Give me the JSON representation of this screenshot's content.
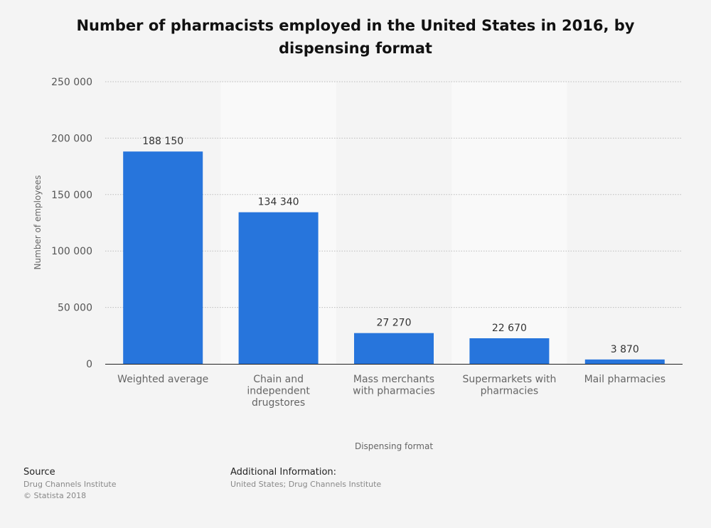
{
  "chart_data": {
    "type": "bar",
    "title": "Number of pharmacists employed in the United States in 2016, by dispensing format",
    "xlabel": "Dispensing format",
    "ylabel": "Number of employees",
    "categories": [
      [
        "Weighted average"
      ],
      [
        "Chain and",
        "independent",
        "drugstores"
      ],
      [
        "Mass merchants",
        "with pharmacies"
      ],
      [
        "Supermarkets with",
        "pharmacies"
      ],
      [
        "Mail pharmacies"
      ]
    ],
    "values": [
      188150,
      134340,
      27270,
      22670,
      3870
    ],
    "value_labels": [
      "188 150",
      "134 340",
      "27 270",
      "22 670",
      "3 870"
    ],
    "ylim": [
      0,
      250000
    ],
    "yticks": [
      0,
      50000,
      100000,
      150000,
      200000,
      250000
    ],
    "ytick_labels": [
      "0",
      "50 000",
      "100 000",
      "150 000",
      "200 000",
      "250 000"
    ],
    "grid": true,
    "legend": "none",
    "bar_color": "#2775dc"
  },
  "footer": {
    "source_heading": "Source",
    "source_lines": [
      "Drug Channels Institute",
      "© Statista 2018"
    ],
    "info_heading": "Additional Information:",
    "info_text": "United States; Drug Channels Institute"
  }
}
